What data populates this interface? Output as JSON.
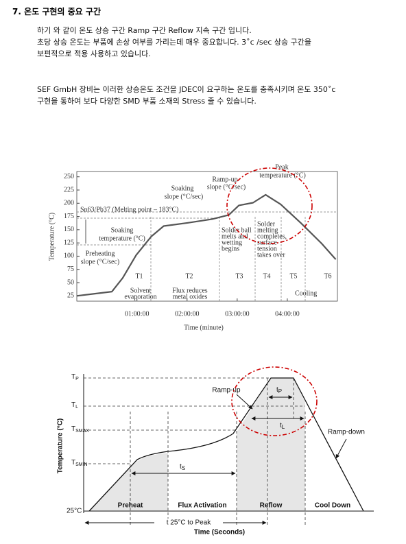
{
  "header": {
    "heading": "7.  온도 구현의 중요 구간"
  },
  "paragraphs": [
    [
      "하기 와 같이 온도 상승 구간 Ramp 구간 Reflow 지속 구간 입니다.",
      "초당 상승 온도는 부품에 손상 여부를 가리는데 매우 중요합니다. 3˚c /sec 상승 구간을",
      "보편적으로 적용 사용하고 있습니다."
    ],
    [
      "SEF GmbH 장비는 이러한 상승온도 조건을 JDEC이 요구하는 온도를 충족시키며 온도 350˚c",
      "구현을 통하여 보다 다양한 SMD 부품 소재의 Stress 줄 수 있습니다."
    ]
  ],
  "chart_data": {
    "type": "line",
    "x": [
      -12,
      30,
      43,
      59,
      77,
      92,
      121,
      150,
      170,
      182,
      199,
      214,
      232,
      256,
      281,
      298
    ],
    "values": [
      25,
      33,
      59,
      102,
      137,
      157,
      163,
      170,
      178,
      196,
      201,
      216,
      198,
      163,
      124,
      94
    ],
    "color": "#555555",
    "xlim": [
      -12,
      300
    ],
    "ylim": [
      15,
      260
    ],
    "xticks": [
      {
        "value": 60,
        "label": "01:00:00"
      },
      {
        "value": 120,
        "label": "02:00:00"
      },
      {
        "value": 180,
        "label": "03:00:00"
      },
      {
        "value": 240,
        "label": "04:00:00"
      }
    ],
    "yticks": [
      25,
      50,
      75,
      100,
      125,
      150,
      175,
      200,
      225,
      250
    ],
    "xlabel": "Time (minute)",
    "ylabel": "Temperature (°C)",
    "annotations": [
      "Peak",
      "temperature (°C)",
      "Ramp-up",
      "slope (°C/sec)",
      "Soaking",
      "slope (°C/sec)",
      "Sn63/Pb37 (Melting point – 183°C)",
      "Soaking",
      "temperature (°C)",
      "Preheating",
      "slope (°C/sec)",
      "T1",
      "T2",
      "T3",
      "T4",
      "T5",
      "T6",
      "Solvent",
      "evaporation",
      "Flux reduces",
      "metal oxides",
      "Solder ball",
      "melts and",
      "wetting",
      "begins",
      "Solder",
      "melting",
      "completes,",
      "surface",
      "tension",
      "takes over",
      "Cooling"
    ]
  },
  "figure2": {
    "levels": [
      {
        "main": "T",
        "sub": "P"
      },
      {
        "main": "T",
        "sub": "L"
      },
      {
        "main": "T",
        "sub": "SMAX"
      },
      {
        "main": "T",
        "sub": "SMIN"
      }
    ],
    "base": "25°C",
    "ylabel": "Temperature (°C)",
    "xlabel": "Time (Seconds)",
    "span": "t 25°C to Peak",
    "ramp_up": "Ramp-up",
    "ramp_down": "Ramp-down",
    "tp": {
      "main": "t",
      "sub": "P"
    },
    "tl": {
      "main": "t",
      "sub": "L"
    },
    "ts": {
      "main": "t",
      "sub": "S"
    },
    "phases": [
      "Preheat",
      "Flux Activation",
      "Reflow",
      "Cool Down"
    ]
  }
}
